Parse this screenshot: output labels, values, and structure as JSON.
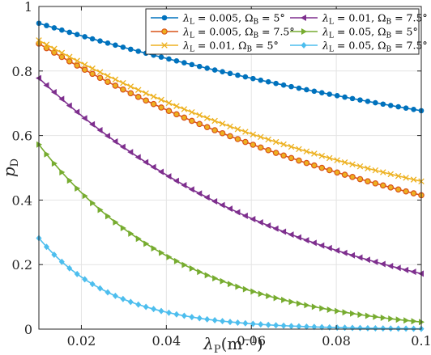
{
  "chart_data": {
    "type": "line",
    "xlabel": "λ",
    "xlabel_sub": "P",
    "xlabel_unit": "(m",
    "xlabel_unit_sup": "−1",
    "xlabel_close": ")",
    "ylabel": "p",
    "ylabel_sub": "D",
    "xlim": [
      0.01,
      0.1
    ],
    "ylim": [
      0,
      1
    ],
    "xticks": [
      0.02,
      0.04,
      0.06,
      0.08,
      0.1
    ],
    "xtick_labels": [
      "0.02",
      "0.04",
      "0.06",
      "0.08",
      "0.1"
    ],
    "yticks": [
      0,
      0.2,
      0.4,
      0.6,
      0.8,
      1
    ],
    "ytick_labels": [
      "0",
      "0.2",
      "0.4",
      "0.6",
      "0.8",
      "1"
    ],
    "grid": true,
    "legend_position": "top-right",
    "legend_columns": 2,
    "x": {
      "start": 0.01,
      "end": 0.1,
      "count": 51
    },
    "series": [
      {
        "name": "λ_L = 0.005, Ω_B = 5°",
        "lambda_L": "0.005",
        "omega_B": "5°",
        "color": "#0072BD",
        "marker": "circle",
        "y_start": 0.948,
        "y_end": 0.677
      },
      {
        "name": "λ_L = 0.005, Ω_B = 7.5°",
        "lambda_L": "0.005",
        "omega_B": "7.5°",
        "color": "#D95319",
        "marker": "circle-open",
        "y_start": 0.885,
        "y_end": 0.415
      },
      {
        "name": "λ_L = 0.01, Ω_B = 5°",
        "lambda_L": "0.01",
        "omega_B": "5°",
        "color": "#EDB120",
        "marker": "x",
        "y_start": 0.895,
        "y_end": 0.458
      },
      {
        "name": "λ_L = 0.01, Ω_B = 7.5°",
        "lambda_L": "0.01",
        "omega_B": "7.5°",
        "color": "#7E2F8E",
        "marker": "triangle-left",
        "y_start": 0.778,
        "y_end": 0.172
      },
      {
        "name": "λ_L = 0.05, Ω_B = 5°",
        "lambda_L": "0.05",
        "omega_B": "5°",
        "color": "#77AC30",
        "marker": "triangle-right",
        "y_start": 0.572,
        "y_end": 0.022
      },
      {
        "name": "λ_L = 0.05, Ω_B = 7.5°",
        "lambda_L": "0.05",
        "omega_B": "7.5°",
        "color": "#4DBEEE",
        "marker": "diamond",
        "y_start": 0.282,
        "y_end": 0.001
      }
    ]
  }
}
